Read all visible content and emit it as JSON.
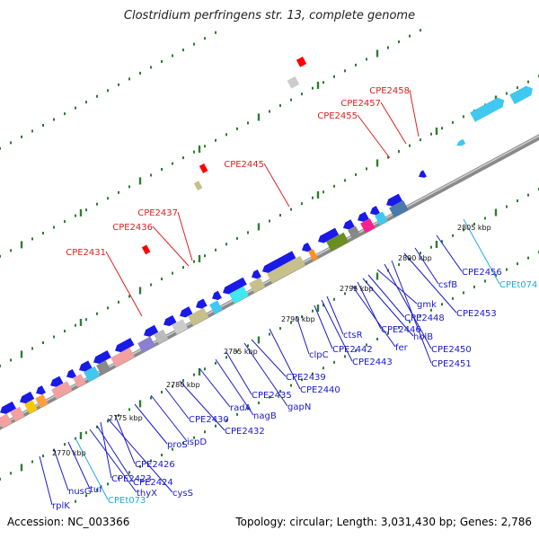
{
  "title": "Clostridium perfringens str. 13, complete genome",
  "footer": {
    "accession": "Accession: NC_003366",
    "summary": "Topology: circular; Length: 3,031,430 bp; Genes: 2,786"
  },
  "colors": {
    "backbone": "#9a9a9a",
    "label_blue": "#1a1acc",
    "label_cyan": "#22aadd",
    "label_red": "#dd2222",
    "tick": "#2e7d32"
  },
  "ticks": [
    "2770 kbp",
    "2775 kbp",
    "2780 kbp",
    "2785 kbp",
    "2790 kbp",
    "2795 kbp",
    "2800 kbp",
    "2805 kbp"
  ],
  "labels": {
    "bottom": [
      {
        "text": "rplK",
        "color": "blue"
      },
      {
        "text": "nusG",
        "color": "blue"
      },
      {
        "text": "tuf",
        "color": "blue"
      },
      {
        "text": "CPEt073",
        "color": "cyan"
      },
      {
        "text": "thyX",
        "color": "blue"
      },
      {
        "text": "CPE2424",
        "color": "blue"
      },
      {
        "text": "CPE2423",
        "color": "blue"
      },
      {
        "text": "cysS",
        "color": "blue"
      },
      {
        "text": "CPE2426",
        "color": "blue"
      },
      {
        "text": "proS",
        "color": "blue"
      },
      {
        "text": "ispD",
        "color": "blue"
      },
      {
        "text": "CPE2430",
        "color": "blue"
      },
      {
        "text": "CPE2432",
        "color": "blue"
      },
      {
        "text": "radA",
        "color": "blue"
      },
      {
        "text": "nagB",
        "color": "blue"
      },
      {
        "text": "CPE2435",
        "color": "blue"
      },
      {
        "text": "gapN",
        "color": "blue"
      },
      {
        "text": "CPE2439",
        "color": "blue"
      },
      {
        "text": "CPE2440",
        "color": "blue"
      },
      {
        "text": "clpC",
        "color": "blue"
      },
      {
        "text": "CPE2442",
        "color": "blue"
      },
      {
        "text": "CPE2443",
        "color": "blue"
      },
      {
        "text": "ctsR",
        "color": "blue"
      },
      {
        "text": "fer",
        "color": "blue"
      },
      {
        "text": "CPE2446",
        "color": "blue"
      },
      {
        "text": "holB",
        "color": "blue"
      },
      {
        "text": "CPE2448",
        "color": "blue"
      },
      {
        "text": "gmk",
        "color": "blue"
      },
      {
        "text": "CPE2450",
        "color": "blue"
      },
      {
        "text": "CPE2451",
        "color": "blue"
      },
      {
        "text": "CPE2453",
        "color": "blue"
      },
      {
        "text": "csfB",
        "color": "blue"
      },
      {
        "text": "CPE2456",
        "color": "blue"
      },
      {
        "text": "CPEt074",
        "color": "cyan"
      }
    ],
    "top": [
      {
        "text": "CPE2431",
        "color": "red"
      },
      {
        "text": "CPE2436",
        "color": "red"
      },
      {
        "text": "CPE2437",
        "color": "red"
      },
      {
        "text": "CPE2445",
        "color": "red"
      },
      {
        "text": "CPE2455",
        "color": "red"
      },
      {
        "text": "CPE2457",
        "color": "red"
      },
      {
        "text": "CPE2458",
        "color": "red"
      }
    ]
  }
}
